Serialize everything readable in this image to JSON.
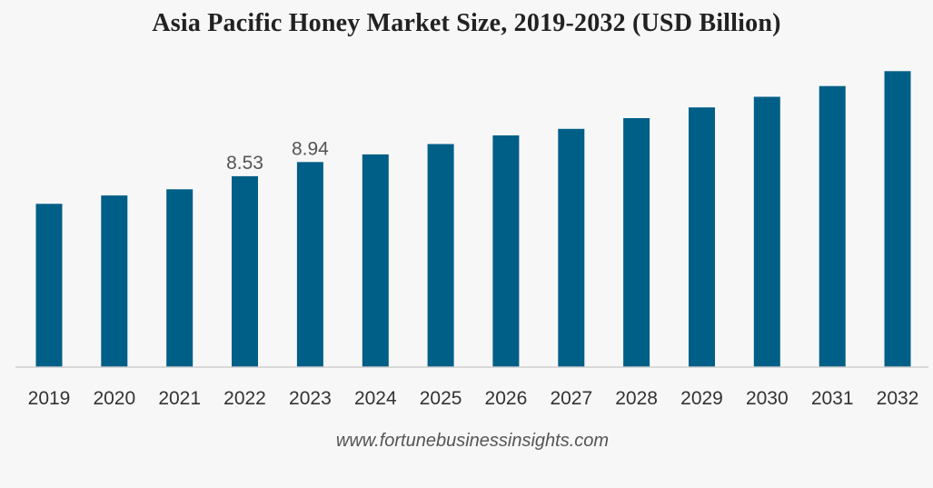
{
  "chart_data": {
    "type": "bar",
    "title": "Asia Pacific Honey Market Size, 2019-2032 (USD Billion)",
    "categories": [
      "2019",
      "2020",
      "2021",
      "2022",
      "2023",
      "2024",
      "2025",
      "2026",
      "2027",
      "2028",
      "2029",
      "2030",
      "2031",
      "2032"
    ],
    "values": [
      7.73,
      7.97,
      8.15,
      8.53,
      8.94,
      9.16,
      9.46,
      9.71,
      9.9,
      10.21,
      10.52,
      10.83,
      11.14,
      11.57
    ],
    "data_labels": [
      "",
      "",
      "",
      "8.53",
      "8.94",
      "",
      "",
      "",
      "",
      "",
      "",
      "",
      "",
      ""
    ],
    "xlabel": "",
    "ylabel": "",
    "ylim": [
      3.0,
      12.0
    ],
    "grid": false,
    "legend": "none",
    "bar_color": "#005f87",
    "axis_color": "#cfcfcf",
    "tick_label_color": "#333333",
    "data_label_color": "#555555"
  },
  "source": "www.fortunebusinessinsights.com"
}
